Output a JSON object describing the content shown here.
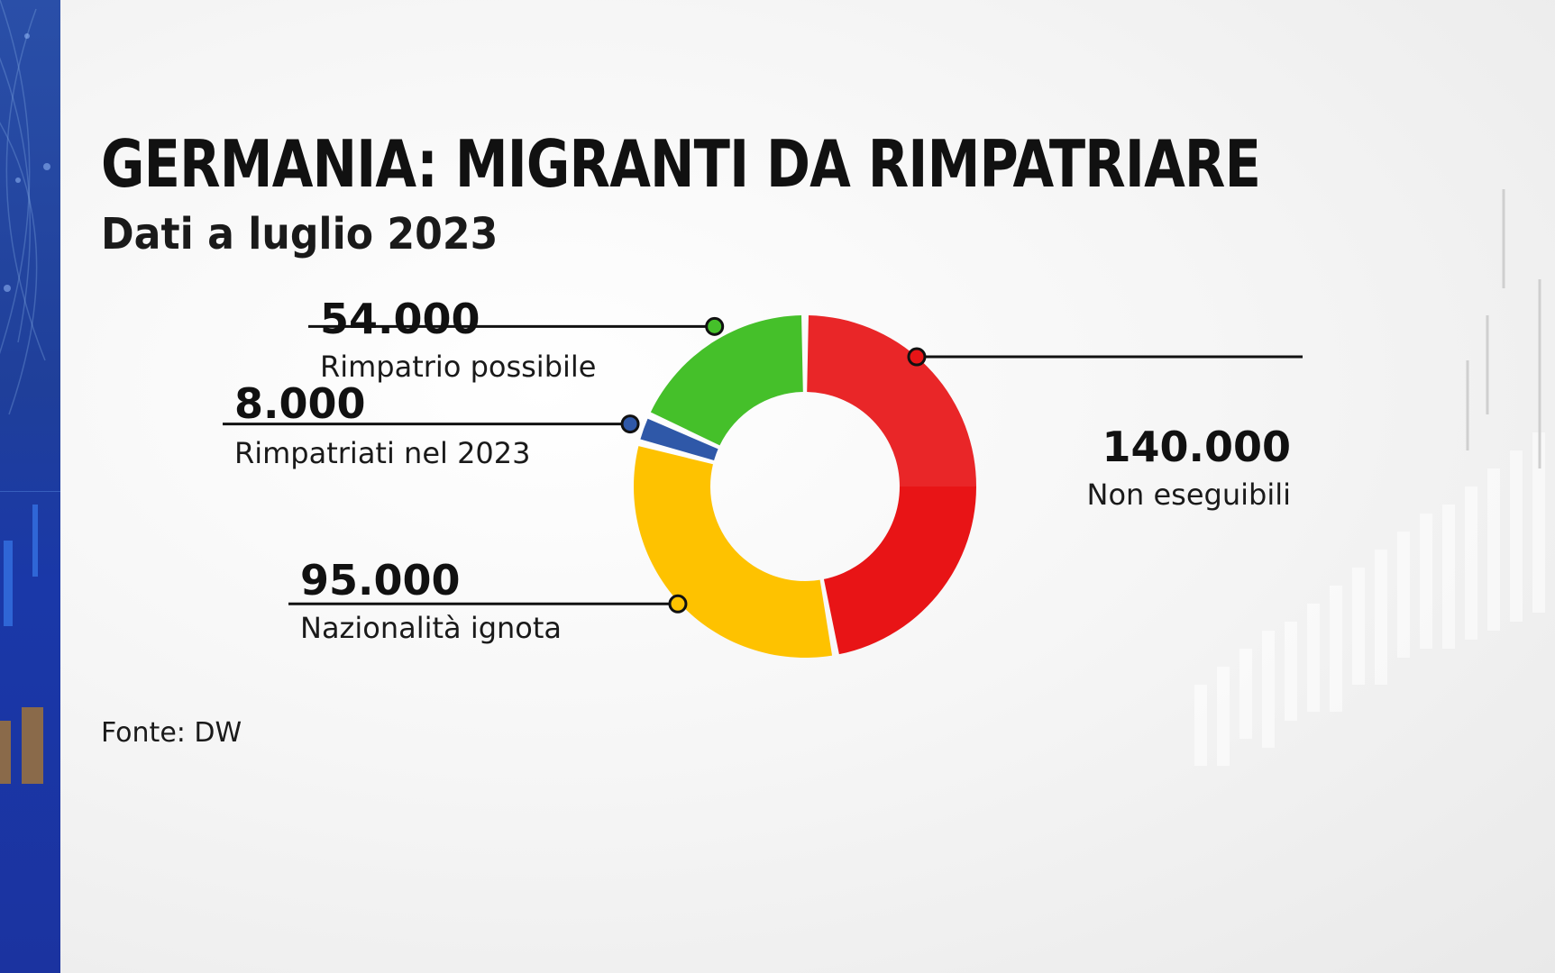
{
  "title": "GERMANIA: MIGRANTI DA RIMPATRIARE",
  "subtitle": "Dati a luglio 2023",
  "source": "Fonte: DW",
  "colors": {
    "non_eseguibili": "#e81416",
    "rimpatrio_possibile": "#45c02a",
    "rimpatriati": "#2f58a8",
    "nazionalita_ignota": "#fec200",
    "sidebar": "#1f3f9a"
  },
  "chart_data": {
    "type": "pie",
    "variant": "donut",
    "title": "GERMANIA: MIGRANTI DA RIMPATRIARE",
    "subtitle": "Dati a luglio 2023",
    "slices": [
      {
        "label": "Non eseguibili",
        "value": 140000,
        "display": "140.000",
        "color": "#e81416"
      },
      {
        "label": "Nazionalità ignota",
        "value": 95000,
        "display": "95.000",
        "color": "#fec200"
      },
      {
        "label": "Rimpatriati nel 2023",
        "value": 8000,
        "display": "8.000",
        "color": "#2f58a8"
      },
      {
        "label": "Rimpatrio possibile",
        "value": 54000,
        "display": "54.000",
        "color": "#45c02a"
      }
    ],
    "source": "Fonte: DW"
  }
}
